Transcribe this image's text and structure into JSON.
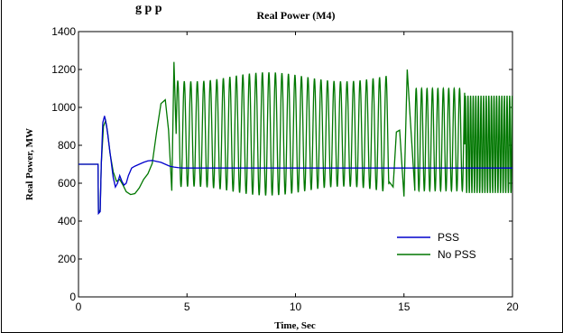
{
  "header_fragment": "g            p        p",
  "chart_data": {
    "type": "line",
    "title": "Real Power (M4)",
    "xlabel": "Time, Sec",
    "ylabel": "Real Power, MW",
    "xlim": [
      0,
      20
    ],
    "ylim": [
      0,
      1400
    ],
    "xticks": [
      0,
      5,
      10,
      15,
      20
    ],
    "yticks": [
      0,
      200,
      400,
      600,
      800,
      1000,
      1200,
      1400
    ],
    "grid": false,
    "legend_position": "lower-right",
    "series": [
      {
        "name": "PSS",
        "color": "#0000cc",
        "x": [
          0,
          0.9,
          0.92,
          1.0,
          1.05,
          1.12,
          1.2,
          1.3,
          1.4,
          1.5,
          1.6,
          1.7,
          1.8,
          1.9,
          2.0,
          2.1,
          2.2,
          2.3,
          2.45,
          2.6,
          2.8,
          3.0,
          3.2,
          3.4,
          3.6,
          3.8,
          4.0,
          4.2,
          4.4,
          4.6,
          4.8,
          5,
          6,
          8,
          10,
          12,
          14,
          16,
          17.5,
          18,
          20
        ],
        "y": [
          700,
          700,
          440,
          450,
          700,
          920,
          955,
          900,
          810,
          720,
          630,
          580,
          600,
          640,
          610,
          590,
          600,
          640,
          680,
          690,
          700,
          710,
          718,
          720,
          715,
          710,
          700,
          690,
          685,
          682,
          680,
          680,
          680,
          680,
          680,
          680,
          680,
          680,
          680,
          680,
          680
        ]
      },
      {
        "name": "No PSS",
        "color": "#007700",
        "oscillation": [
          {
            "from": 4.5,
            "to": 14.3,
            "period": 0.3,
            "min": 560,
            "max": 1160
          },
          {
            "from": 15.5,
            "to": 17.8,
            "period": 0.25,
            "min": 560,
            "max": 1100
          },
          {
            "from": 17.8,
            "to": 20,
            "period": 0.12,
            "min": 550,
            "max": 1060
          }
        ],
        "x": [
          0,
          0.9,
          0.92,
          1.0,
          1.05,
          1.15,
          1.25,
          1.35,
          1.45,
          1.6,
          1.75,
          1.9,
          2.05,
          2.2,
          2.4,
          2.6,
          2.8,
          3.0,
          3.2,
          3.4,
          3.6,
          3.8,
          4.0,
          4.15,
          4.3,
          4.4,
          14.3,
          14.5,
          14.65,
          14.8,
          15.0,
          15.15,
          15.3,
          15.5,
          20
        ],
        "y": [
          700,
          700,
          440,
          460,
          700,
          900,
          930,
          860,
          760,
          660,
          610,
          620,
          590,
          555,
          540,
          545,
          575,
          620,
          650,
          705,
          870,
          1020,
          1040,
          880,
          560,
          1240,
          610,
          580,
          870,
          880,
          530,
          1200,
          920,
          560,
          1000
        ]
      }
    ]
  }
}
